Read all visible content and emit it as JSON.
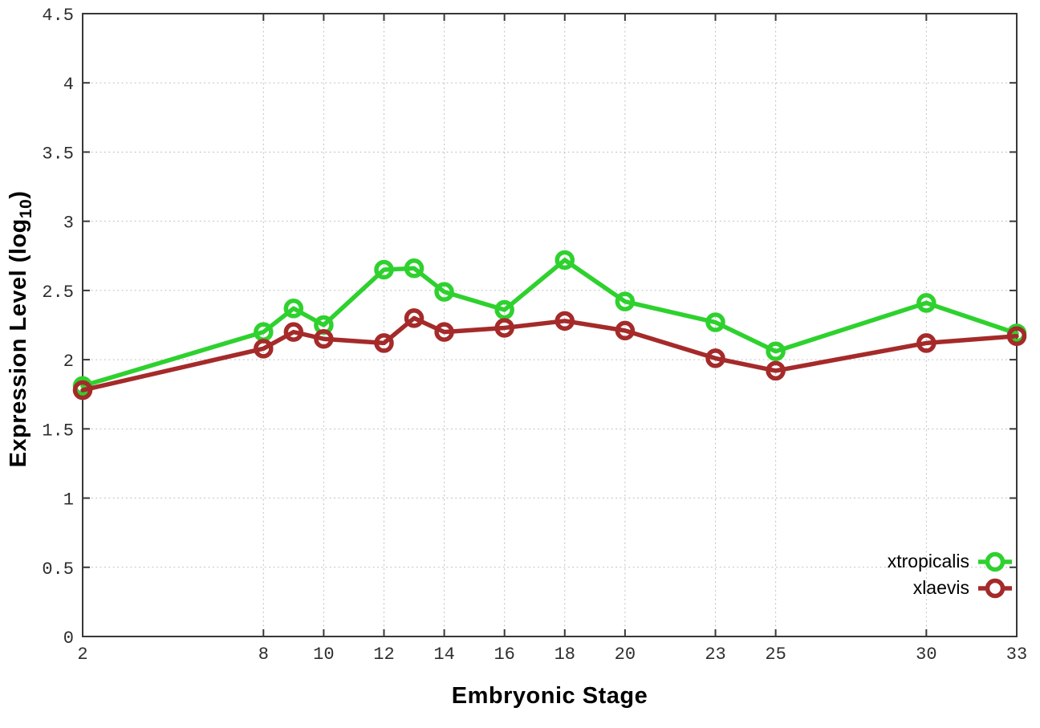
{
  "chart_data": {
    "type": "line",
    "title": "",
    "xlabel": "Embryonic Stage",
    "ylabel": {
      "prefix": "Expression Level (log",
      "subscript": "10",
      "suffix": ")"
    },
    "xlim": [
      2,
      33
    ],
    "ylim": [
      0,
      4.5
    ],
    "xticks": [
      2,
      8,
      10,
      12,
      14,
      16,
      18,
      20,
      23,
      25,
      30,
      33
    ],
    "yticks": [
      0,
      0.5,
      1,
      1.5,
      2,
      2.5,
      3,
      3.5,
      4,
      4.5
    ],
    "grid": true,
    "legend_position": "bottom-right",
    "x": [
      2,
      8,
      9,
      10,
      12,
      13,
      14,
      16,
      18,
      20,
      23,
      25,
      30,
      33
    ],
    "series": [
      {
        "name": "xtropicalis",
        "color": "#2ed12e",
        "values": [
          1.81,
          2.2,
          2.37,
          2.25,
          2.65,
          2.66,
          2.49,
          2.36,
          2.72,
          2.42,
          2.27,
          2.06,
          2.41,
          2.19
        ]
      },
      {
        "name": "xlaevis",
        "color": "#a52a2a",
        "values": [
          1.78,
          2.08,
          2.2,
          2.15,
          2.12,
          2.3,
          2.2,
          2.23,
          2.28,
          2.21,
          2.01,
          1.92,
          2.12,
          2.17
        ]
      }
    ]
  },
  "styles": {
    "border_color": "#383838",
    "tick_color": "#383838",
    "grid_color": "#bbbbbb",
    "tick_label_color": "#2e2e2e",
    "background": "#ffffff"
  }
}
